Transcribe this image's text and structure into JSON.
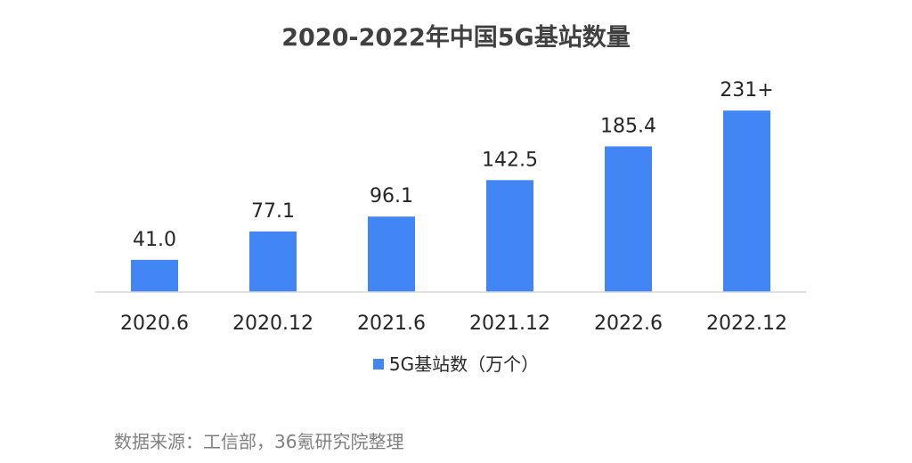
{
  "colors": {
    "bar": "#4285f4",
    "axis": "#d9d9d9",
    "label": "#262626",
    "title": "#404040",
    "source": "#7f7f7f"
  },
  "source_text": "数据来源：工信部，36氪研究院整理",
  "chart_data": {
    "type": "bar",
    "title": "2020-2022年中国5G基站数量",
    "xlabel": "",
    "ylabel": "",
    "ylim": [
      0,
      250
    ],
    "grid": false,
    "legend_position": "bottom",
    "categories": [
      "2020.6",
      "2020.12",
      "2021.6",
      "2021.12",
      "2022.6",
      "2022.12"
    ],
    "series": [
      {
        "name": "5G基站数（万个）",
        "values": [
          41.0,
          77.1,
          96.1,
          142.5,
          185.4,
          231
        ],
        "labels": [
          "41.0",
          "77.1",
          "96.1",
          "142.5",
          "185.4",
          "231+"
        ]
      }
    ]
  }
}
